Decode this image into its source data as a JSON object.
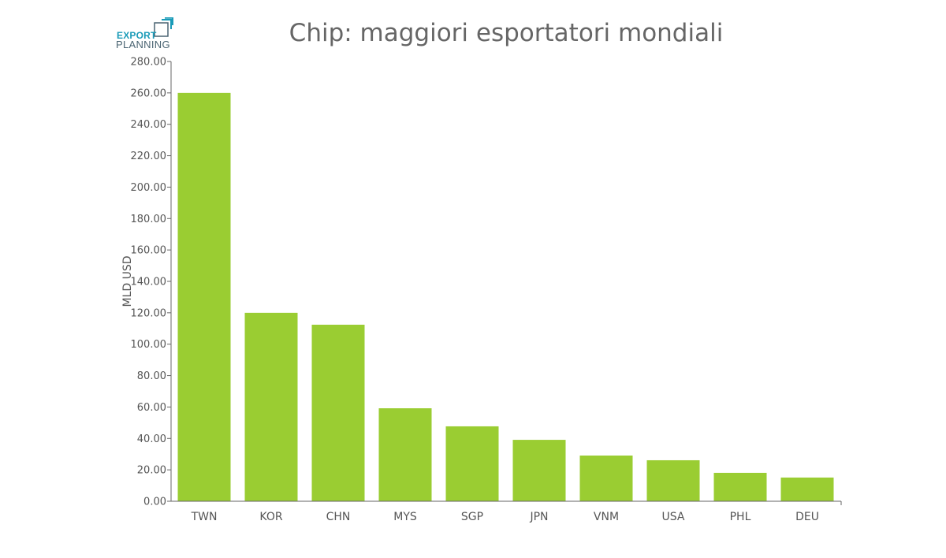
{
  "logo": {
    "line1": "EXPORT",
    "line2": "PLANNING"
  },
  "chart_data": {
    "type": "bar",
    "title": "Chip: maggiori esportatori mondiali",
    "xlabel": "",
    "ylabel": "MLD USD",
    "categories": [
      "TWN",
      "KOR",
      "CHN",
      "MYS",
      "SGP",
      "JPN",
      "VNM",
      "USA",
      "PHL",
      "DEU"
    ],
    "values": [
      260.0,
      120.0,
      112.4,
      59.2,
      47.7,
      39.1,
      29.1,
      26.1,
      18.1,
      15.1
    ],
    "ylim": [
      0,
      280
    ],
    "yticks": [
      "0.00",
      "20.00",
      "40.00",
      "60.00",
      "80.00",
      "100.00",
      "120.00",
      "140.00",
      "160.00",
      "180.00",
      "200.00",
      "220.00",
      "240.00",
      "260.00",
      "280.00"
    ],
    "bar_color": "#9acd32",
    "grid": false,
    "legend": "none"
  }
}
